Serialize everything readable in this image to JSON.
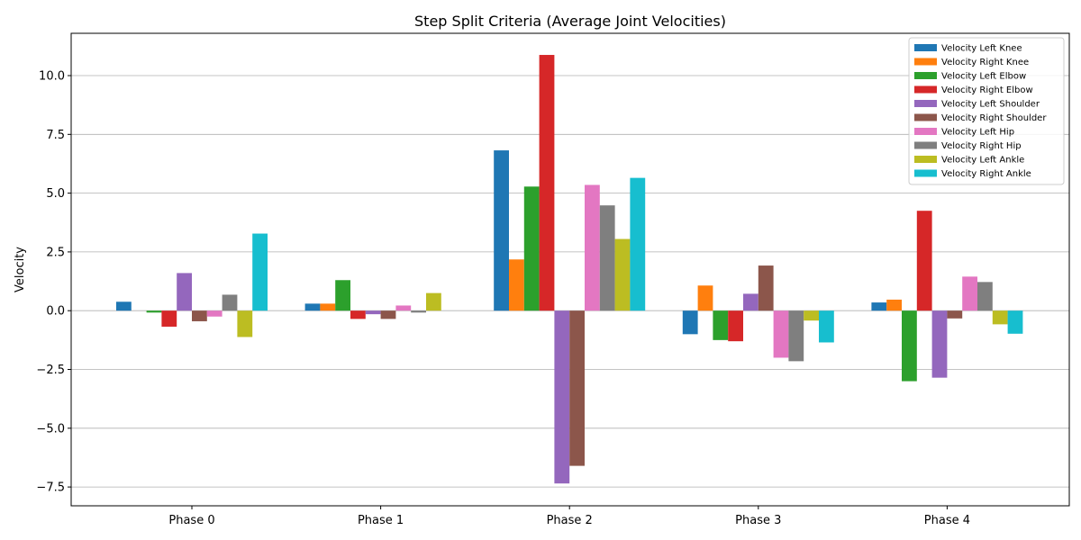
{
  "chart_data": {
    "type": "bar",
    "title": "Step Split Criteria (Average Joint Velocities)",
    "xlabel": "",
    "ylabel": "Velocity",
    "categories": [
      "Phase 0",
      "Phase 1",
      "Phase 2",
      "Phase 3",
      "Phase 4"
    ],
    "ylim": [
      -8.3,
      11.8
    ],
    "yticks": [
      -7.5,
      -5.0,
      -2.5,
      0.0,
      2.5,
      5.0,
      7.5,
      10.0
    ],
    "ytick_labels": [
      "−7.5",
      "−5.0",
      "−2.5",
      "0.0",
      "2.5",
      "5.0",
      "7.5",
      "10.0"
    ],
    "grid": "y",
    "legend_position": "top-right",
    "series": [
      {
        "name": "Velocity Left Knee",
        "color": "#1f77b4",
        "values": [
          0.38,
          0.3,
          6.82,
          -1.0,
          0.35
        ]
      },
      {
        "name": "Velocity Right Knee",
        "color": "#ff7f0e",
        "values": [
          0.0,
          0.3,
          2.18,
          1.07,
          0.47
        ]
      },
      {
        "name": "Velocity Left Elbow",
        "color": "#2ca02c",
        "values": [
          -0.08,
          1.3,
          5.28,
          -1.25,
          -3.0
        ]
      },
      {
        "name": "Velocity Right Elbow",
        "color": "#d62728",
        "values": [
          -0.68,
          -0.35,
          10.88,
          -1.3,
          4.25
        ]
      },
      {
        "name": "Velocity Left Shoulder",
        "color": "#9467bd",
        "values": [
          1.6,
          -0.15,
          -7.35,
          0.72,
          -2.85
        ]
      },
      {
        "name": "Velocity Right Shoulder",
        "color": "#8c564b",
        "values": [
          -0.45,
          -0.35,
          -6.6,
          1.92,
          -0.33
        ]
      },
      {
        "name": "Velocity Left Hip",
        "color": "#e377c2",
        "values": [
          -0.25,
          0.22,
          5.35,
          -2.0,
          1.45
        ]
      },
      {
        "name": "Velocity Right Hip",
        "color": "#7f7f7f",
        "values": [
          0.68,
          -0.08,
          4.48,
          -2.15,
          1.22
        ]
      },
      {
        "name": "Velocity Left Ankle",
        "color": "#bcbd22",
        "values": [
          -1.12,
          0.75,
          3.05,
          -0.42,
          -0.58
        ]
      },
      {
        "name": "Velocity Right Ankle",
        "color": "#17becf",
        "values": [
          3.28,
          0.0,
          5.65,
          -1.35,
          -0.98
        ]
      }
    ]
  }
}
